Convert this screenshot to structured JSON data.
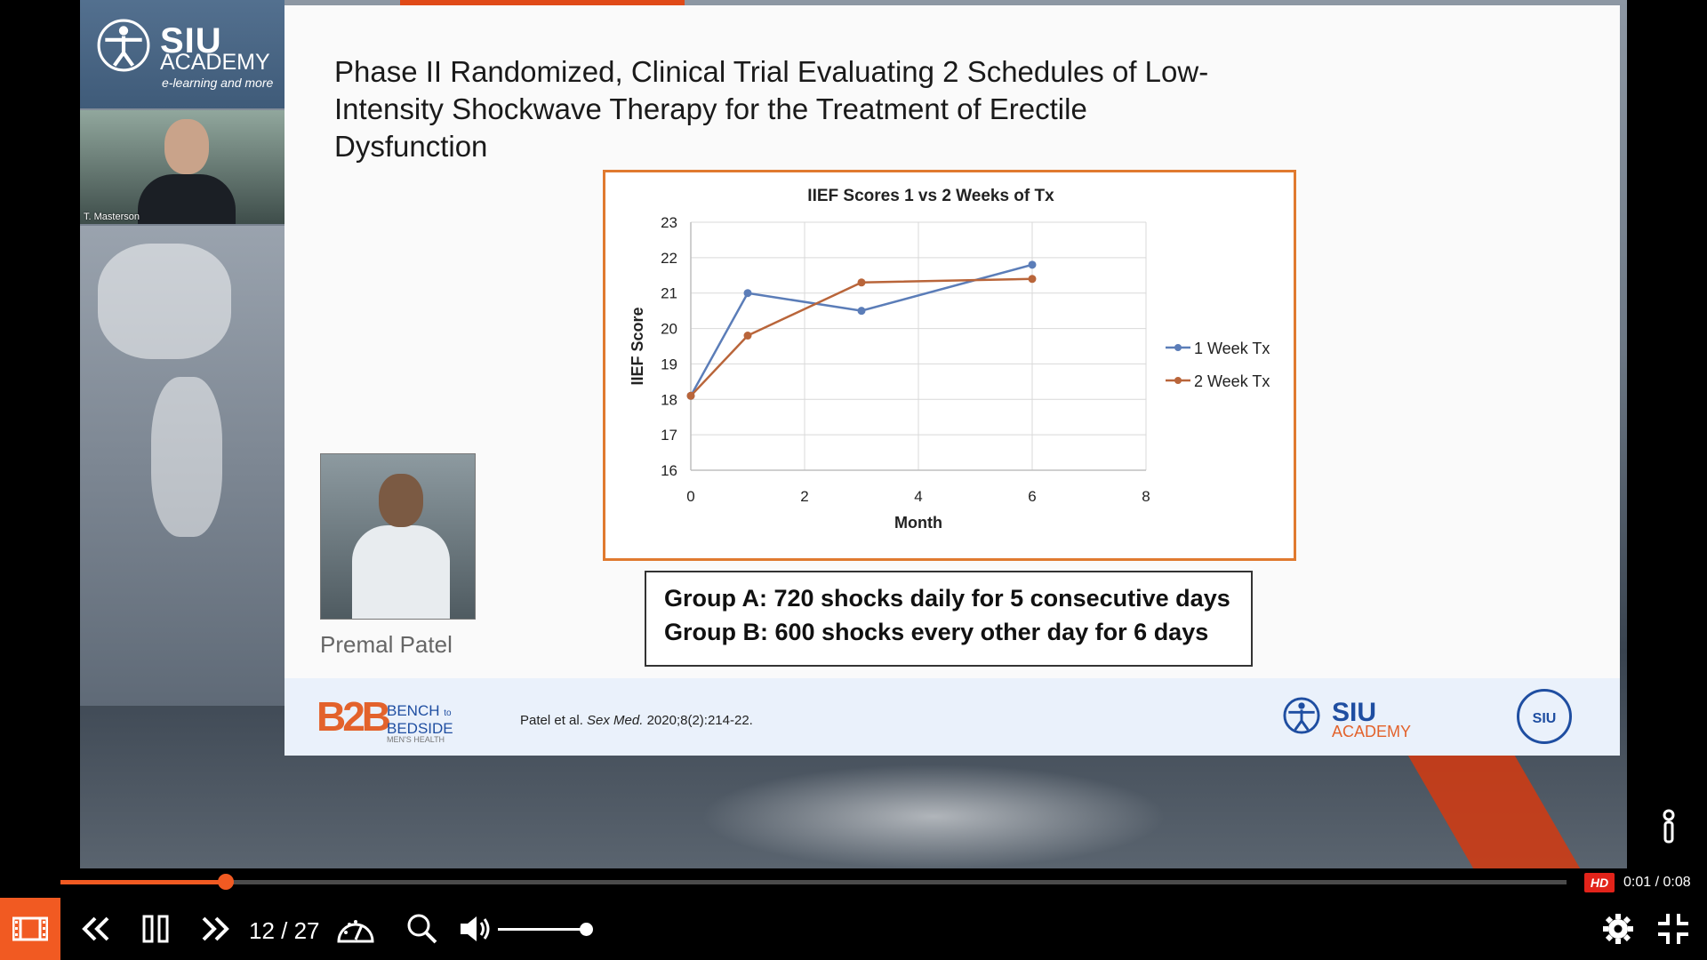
{
  "sidebar": {
    "brand": "SIU",
    "brand_sub": "ACADEMY",
    "tagline": "e-learning and more",
    "camera_name": "T. Masterson"
  },
  "slide": {
    "title": "Phase II Randomized, Clinical Trial Evaluating 2 Schedules of Low-Intensity Shockwave Therapy for the Treatment of Erectile Dysfunction",
    "presenter_name": "Premal Patel",
    "group_a": "Group A: 720 shocks daily for 5 consecutive days",
    "group_b": "Group B: 600 shocks every other day for 6 days",
    "footer": {
      "b2b_logo": "B2B",
      "bench": "BENCH",
      "to": "to",
      "bedside": "BEDSIDE",
      "mens_health": "MEN'S HEALTH",
      "ref_plain": "Patel et al. ",
      "ref_journal": "Sex Med.",
      "ref_rest": " 2020;8(2):214-22.",
      "siu": "SIU",
      "academy": "ACADEMY",
      "seal": "SIU"
    }
  },
  "chart_data": {
    "type": "line",
    "title": "IIEF Scores 1 vs 2 Weeks of Tx",
    "xlabel": "Month",
    "ylabel": "IIEF Score",
    "xlim": [
      0,
      8
    ],
    "ylim": [
      16,
      23
    ],
    "xticks": [
      0,
      2,
      4,
      6,
      8
    ],
    "yticks": [
      16,
      17,
      18,
      19,
      20,
      21,
      22,
      23
    ],
    "grid": true,
    "legend_position": "right",
    "series": [
      {
        "name": "1 Week Tx",
        "color": "#5b7db8",
        "x": [
          0,
          1,
          3,
          6
        ],
        "y": [
          18.1,
          21.0,
          20.5,
          21.8
        ]
      },
      {
        "name": "2 Week Tx",
        "color": "#b9653a",
        "x": [
          0,
          1,
          3,
          6
        ],
        "y": [
          18.1,
          19.8,
          21.3,
          21.4
        ]
      }
    ]
  },
  "player": {
    "progress_fraction": 0.11,
    "hd_label": "HD",
    "time": "0:01 / 0:08",
    "slide_count": "12 / 27",
    "volume_fraction": 1.0,
    "accent_color": "#f15a22"
  }
}
